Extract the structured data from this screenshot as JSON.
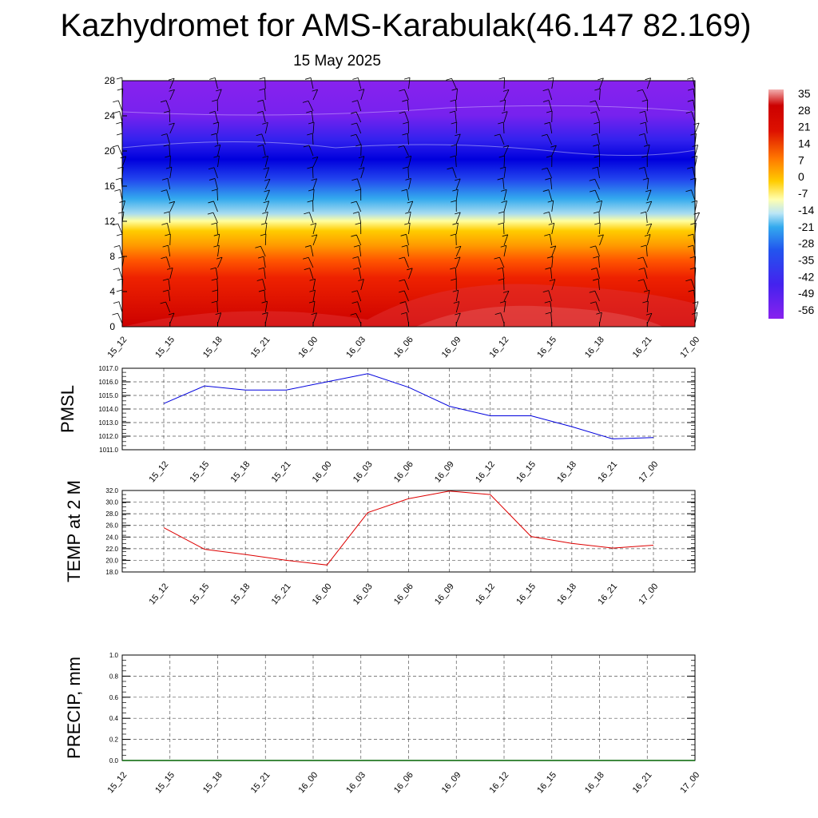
{
  "title": "Kazhydromet for AMS-Karabulak(46.147 82.169)",
  "date": "15 May 2025",
  "colors": {
    "pmsl_line": "#0000dd",
    "temp_line": "#dd0000",
    "precip_line": "#006400"
  },
  "chart_data": [
    {
      "type": "heatmap",
      "title": "",
      "xlabel": "",
      "ylabel": "",
      "x": [
        "15_12",
        "15_15",
        "15_18",
        "15_21",
        "16_00",
        "16_03",
        "16_06",
        "16_09",
        "16_12",
        "16_15",
        "16_18",
        "16_21",
        "17_00"
      ],
      "y_ticks": [
        "0",
        "4",
        "8",
        "12",
        "16",
        "20",
        "24",
        "28"
      ],
      "ylim": [
        0,
        28
      ],
      "colorbar_labels": [
        "35",
        "28",
        "21",
        "14",
        "7",
        "0",
        "-7",
        "-14",
        "-21",
        "-28",
        "-35",
        "-42",
        "-49",
        "-56"
      ],
      "colorbar_range": [
        -60,
        38
      ],
      "grid": false,
      "legend": "right"
    },
    {
      "type": "line",
      "title": "",
      "ylabel": "PMSL",
      "x": [
        "15_12",
        "15_15",
        "15_18",
        "15_21",
        "16_00",
        "16_03",
        "16_06",
        "16_09",
        "16_12",
        "16_15",
        "16_18",
        "16_21",
        "17_00"
      ],
      "series": [
        {
          "values": [
            1014.4,
            1015.7,
            1015.4,
            1015.4,
            1016.0,
            1016.6,
            1015.6,
            1014.2,
            1013.5,
            1013.5,
            1012.7,
            1011.8,
            1011.9
          ]
        }
      ],
      "y_ticks": [
        "1011.0",
        "1012.0",
        "1013.0",
        "1014.0",
        "1015.0",
        "1016.0",
        "1017.0"
      ],
      "ylim": [
        1011,
        1017
      ],
      "grid": true
    },
    {
      "type": "line",
      "title": "",
      "ylabel": "TEMP at 2 M",
      "x": [
        "15_12",
        "15_15",
        "15_18",
        "15_21",
        "16_00",
        "16_03",
        "16_06",
        "16_09",
        "16_12",
        "16_15",
        "16_18",
        "16_21",
        "17_00"
      ],
      "series": [
        {
          "values": [
            25.6,
            21.9,
            21.0,
            20.0,
            19.2,
            28.2,
            30.6,
            31.9,
            31.3,
            24.1,
            22.9,
            22.1,
            22.6
          ]
        }
      ],
      "y_ticks": [
        "18.0",
        "20.0",
        "22.0",
        "24.0",
        "26.0",
        "28.0",
        "30.0",
        "32.0"
      ],
      "ylim": [
        18,
        32
      ],
      "grid": true
    },
    {
      "type": "line",
      "title": "",
      "ylabel": "PRECIP, mm",
      "x": [
        "15_12",
        "15_15",
        "15_18",
        "15_21",
        "16_00",
        "16_03",
        "16_06",
        "16_09",
        "16_12",
        "16_15",
        "16_18",
        "16_21",
        "17_00"
      ],
      "series": [
        {
          "values": [
            0,
            0,
            0,
            0,
            0,
            0,
            0,
            0,
            0,
            0,
            0,
            0,
            0
          ]
        }
      ],
      "y_ticks": [
        "0.0",
        "0.2",
        "0.4",
        "0.6",
        "0.8",
        "1.0"
      ],
      "ylim": [
        0,
        1
      ],
      "grid": true
    }
  ]
}
